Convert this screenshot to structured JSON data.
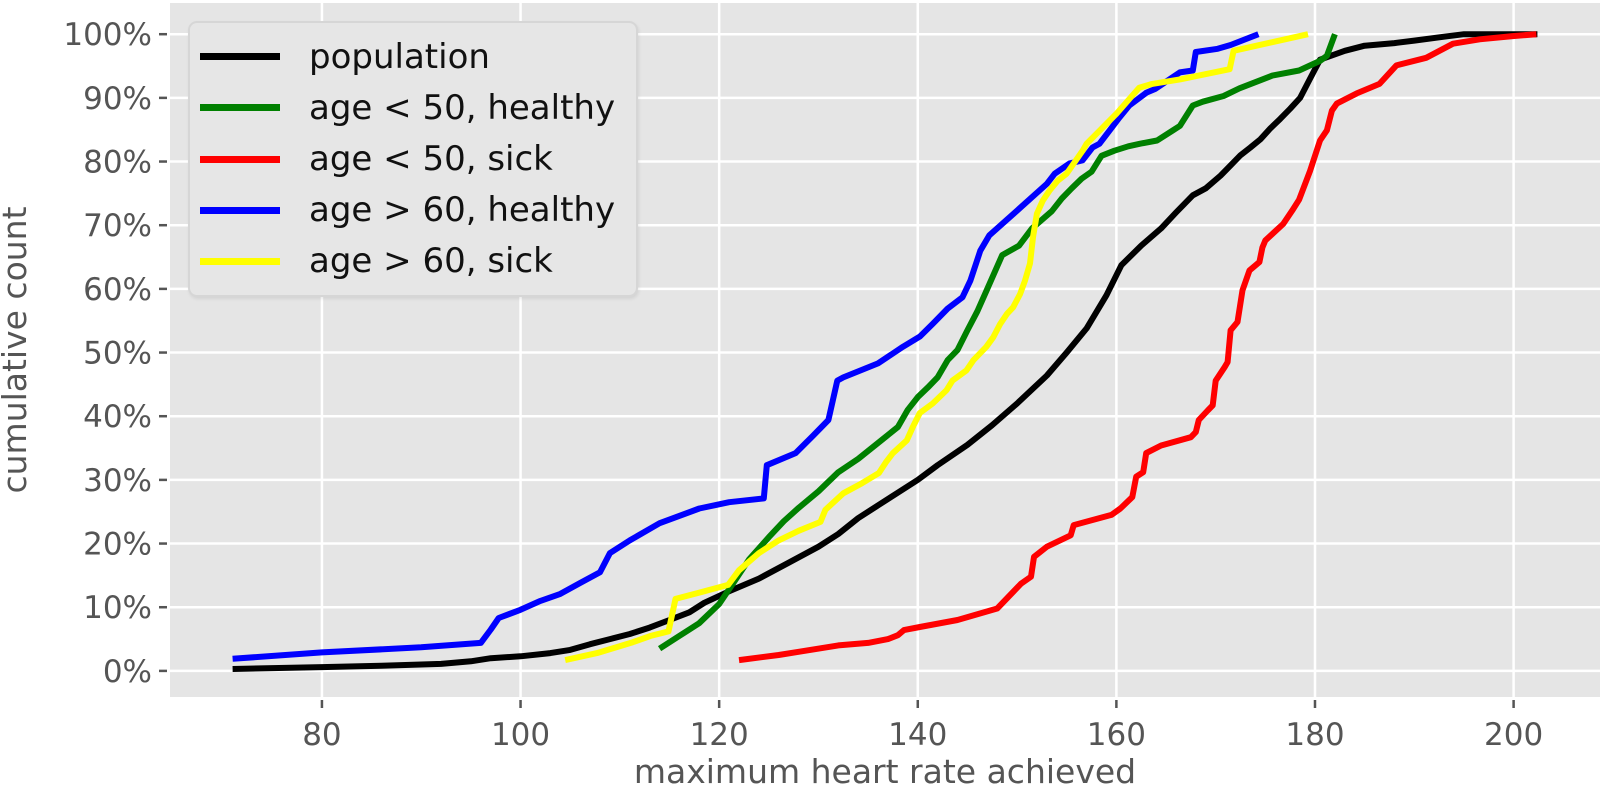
{
  "figure": {
    "background": "#ffffff",
    "plot_background": "#e5e5e5",
    "grid_color": "#ffffff",
    "tick_color": "#555555",
    "label_color": "#555555"
  },
  "chart_data": {
    "type": "line",
    "subtype": "cumulative-distribution",
    "title": "",
    "xlabel": "maximum heart rate achieved",
    "ylabel": "cumulative count",
    "grid": true,
    "legend_position": "upper left",
    "xlim": [
      64.7,
      208.7
    ],
    "ylim": [
      -4.1,
      104.9
    ],
    "x_ticks": [
      80,
      100,
      120,
      140,
      160,
      180,
      200
    ],
    "x_tick_labels": [
      "80",
      "100",
      "120",
      "140",
      "160",
      "180",
      "200"
    ],
    "y_ticks": [
      0,
      10,
      20,
      30,
      40,
      50,
      60,
      70,
      80,
      90,
      100
    ],
    "y_tick_labels": [
      "0%",
      "10%",
      "20%",
      "30%",
      "40%",
      "50%",
      "60%",
      "70%",
      "80%",
      "90%",
      "100%"
    ],
    "series": [
      {
        "label": "population",
        "color": "#000000",
        "points": [
          [
            71,
            0.3
          ],
          [
            80,
            0.6
          ],
          [
            86,
            0.8
          ],
          [
            92,
            1.1
          ],
          [
            95,
            1.5
          ],
          [
            97,
            2.0
          ],
          [
            100,
            2.3
          ],
          [
            103,
            2.8
          ],
          [
            105,
            3.3
          ],
          [
            107,
            4.2
          ],
          [
            109,
            5.0
          ],
          [
            111,
            5.8
          ],
          [
            113,
            6.8
          ],
          [
            115,
            8.0
          ],
          [
            117,
            9.2
          ],
          [
            118.5,
            10.7
          ],
          [
            121,
            12.5
          ],
          [
            124,
            14.5
          ],
          [
            127,
            17.0
          ],
          [
            130,
            19.5
          ],
          [
            132,
            21.5
          ],
          [
            134,
            24.0
          ],
          [
            136,
            26.0
          ],
          [
            138,
            28.0
          ],
          [
            140,
            30.0
          ],
          [
            142,
            32.3
          ],
          [
            145,
            35.5
          ],
          [
            147.5,
            38.6
          ],
          [
            150,
            42.0
          ],
          [
            153,
            46.4
          ],
          [
            155,
            50.0
          ],
          [
            157,
            53.8
          ],
          [
            159,
            59.0
          ],
          [
            160.5,
            63.7
          ],
          [
            162.5,
            66.8
          ],
          [
            164.5,
            69.5
          ],
          [
            166,
            72.0
          ],
          [
            167.7,
            74.7
          ],
          [
            169,
            75.8
          ],
          [
            170.5,
            77.8
          ],
          [
            171.5,
            79.4
          ],
          [
            172.5,
            81.0
          ],
          [
            173.5,
            82.2
          ],
          [
            174.5,
            83.5
          ],
          [
            175.5,
            85.2
          ],
          [
            176.5,
            86.7
          ],
          [
            177.5,
            88.3
          ],
          [
            178.5,
            90.0
          ],
          [
            179.5,
            93.0
          ],
          [
            180.5,
            96.0
          ],
          [
            183,
            97.4
          ],
          [
            185,
            98.2
          ],
          [
            188,
            98.6
          ],
          [
            190,
            99.0
          ],
          [
            193,
            99.6
          ],
          [
            195,
            100
          ],
          [
            202.4,
            100
          ]
        ]
      },
      {
        "label": "age < 50, healthy",
        "color": "#008000",
        "points": [
          [
            114,
            3.5
          ],
          [
            116,
            5.5
          ],
          [
            118,
            7.5
          ],
          [
            120,
            10.5
          ],
          [
            121.5,
            14.0
          ],
          [
            123,
            17.5
          ],
          [
            125,
            21.0
          ],
          [
            126.5,
            23.5
          ],
          [
            128,
            25.6
          ],
          [
            130,
            28.2
          ],
          [
            132,
            31.2
          ],
          [
            134,
            33.3
          ],
          [
            136,
            35.8
          ],
          [
            138,
            38.3
          ],
          [
            139,
            41.0
          ],
          [
            140,
            43.0
          ],
          [
            141,
            44.5
          ],
          [
            142,
            46.1
          ],
          [
            143,
            48.8
          ],
          [
            144,
            50.4
          ],
          [
            145,
            53.5
          ],
          [
            146,
            56.5
          ],
          [
            147,
            60.0
          ],
          [
            148.5,
            65.3
          ],
          [
            150.2,
            66.8
          ],
          [
            151.5,
            69.5
          ],
          [
            153.5,
            72.2
          ],
          [
            154.5,
            74.2
          ],
          [
            155.5,
            75.8
          ],
          [
            156.5,
            77.3
          ],
          [
            157.5,
            78.4
          ],
          [
            158.5,
            80.9
          ],
          [
            159.8,
            81.7
          ],
          [
            161.2,
            82.4
          ],
          [
            162.4,
            82.8
          ],
          [
            164.1,
            83.3
          ],
          [
            165.7,
            84.9
          ],
          [
            166.4,
            85.6
          ],
          [
            167.7,
            88.8
          ],
          [
            168.7,
            89.4
          ],
          [
            170.8,
            90.3
          ],
          [
            172.4,
            91.5
          ],
          [
            175.7,
            93.5
          ],
          [
            178.4,
            94.3
          ],
          [
            180.5,
            95.8
          ],
          [
            181.2,
            96.6
          ],
          [
            182,
            100
          ]
        ]
      },
      {
        "label": "age < 50, sick",
        "color": "#ff0000",
        "points": [
          [
            122,
            1.7
          ],
          [
            126,
            2.5
          ],
          [
            128,
            3.0
          ],
          [
            132,
            4.0
          ],
          [
            135,
            4.4
          ],
          [
            137,
            5.0
          ],
          [
            138,
            5.6
          ],
          [
            138.6,
            6.4
          ],
          [
            140.2,
            6.9
          ],
          [
            144,
            8.0
          ],
          [
            148,
            9.8
          ],
          [
            150.4,
            13.7
          ],
          [
            151.4,
            14.8
          ],
          [
            151.7,
            17.9
          ],
          [
            153,
            19.5
          ],
          [
            155.4,
            21.3
          ],
          [
            155.7,
            22.9
          ],
          [
            159.5,
            24.5
          ],
          [
            160.4,
            25.5
          ],
          [
            161.6,
            27.3
          ],
          [
            162,
            30.5
          ],
          [
            162.7,
            31.2
          ],
          [
            163,
            34.2
          ],
          [
            164.5,
            35.4
          ],
          [
            167.5,
            36.7
          ],
          [
            168,
            37.5
          ],
          [
            168.3,
            39.4
          ],
          [
            169.2,
            40.9
          ],
          [
            169.7,
            41.7
          ],
          [
            170,
            45.6
          ],
          [
            170.9,
            47.7
          ],
          [
            171.2,
            48.5
          ],
          [
            171.5,
            53.5
          ],
          [
            172.2,
            54.8
          ],
          [
            172.7,
            59.8
          ],
          [
            173.4,
            62.9
          ],
          [
            174.4,
            64.2
          ],
          [
            174.7,
            66.5
          ],
          [
            175,
            67.6
          ],
          [
            176.8,
            70.2
          ],
          [
            177.7,
            72.3
          ],
          [
            178.4,
            74.0
          ],
          [
            179.5,
            78.5
          ],
          [
            180.5,
            83.3
          ],
          [
            181.2,
            84.9
          ],
          [
            181.7,
            88.0
          ],
          [
            182.2,
            89.1
          ],
          [
            184.2,
            90.7
          ],
          [
            186.5,
            92.2
          ],
          [
            188.2,
            95.1
          ],
          [
            191.2,
            96.3
          ],
          [
            193.9,
            98.5
          ],
          [
            196.6,
            99.2
          ],
          [
            199.9,
            99.7
          ],
          [
            202.3,
            100
          ]
        ]
      },
      {
        "label": "age > 60, healthy",
        "color": "#0000ff",
        "points": [
          [
            71,
            1.9
          ],
          [
            80,
            2.9
          ],
          [
            90,
            3.7
          ],
          [
            96,
            4.4
          ],
          [
            97,
            6.5
          ],
          [
            97.8,
            8.3
          ],
          [
            100,
            9.6
          ],
          [
            102,
            11.0
          ],
          [
            104,
            12.1
          ],
          [
            106,
            13.8
          ],
          [
            108,
            15.5
          ],
          [
            109,
            18.5
          ],
          [
            111,
            20.5
          ],
          [
            114,
            23.2
          ],
          [
            118,
            25.5
          ],
          [
            121,
            26.5
          ],
          [
            124.5,
            27.1
          ],
          [
            124.8,
            32.3
          ],
          [
            127.7,
            34.2
          ],
          [
            129.5,
            37.0
          ],
          [
            131,
            39.4
          ],
          [
            131.9,
            45.6
          ],
          [
            132.5,
            46.1
          ],
          [
            136,
            48.3
          ],
          [
            138.5,
            50.9
          ],
          [
            140.2,
            52.5
          ],
          [
            141.5,
            54.5
          ],
          [
            143,
            56.9
          ],
          [
            144.5,
            58.7
          ],
          [
            145.3,
            61.3
          ],
          [
            146.3,
            66.0
          ],
          [
            147.2,
            68.4
          ],
          [
            150,
            72.3
          ],
          [
            153,
            76.5
          ],
          [
            153.8,
            78.1
          ],
          [
            155.3,
            79.7
          ],
          [
            156.6,
            80.2
          ],
          [
            157.6,
            82.2
          ],
          [
            158.3,
            82.8
          ],
          [
            160.3,
            86.9
          ],
          [
            161.3,
            88.8
          ],
          [
            163,
            90.8
          ],
          [
            163.9,
            91.4
          ],
          [
            166.4,
            94.0
          ],
          [
            167.7,
            94.3
          ],
          [
            168,
            97.2
          ],
          [
            170.2,
            97.7
          ],
          [
            171.5,
            98.3
          ],
          [
            174.3,
            100
          ]
        ]
      },
      {
        "label": "age > 60, sick",
        "color": "#ffff00",
        "points": [
          [
            104.5,
            1.7
          ],
          [
            107.7,
            2.8
          ],
          [
            111.3,
            4.5
          ],
          [
            113.1,
            5.5
          ],
          [
            114.9,
            6.2
          ],
          [
            115.6,
            11.3
          ],
          [
            118,
            12.3
          ],
          [
            120.9,
            13.5
          ],
          [
            122,
            15.8
          ],
          [
            124,
            18.5
          ],
          [
            126,
            20.5
          ],
          [
            128,
            22.0
          ],
          [
            130.2,
            23.4
          ],
          [
            130.7,
            25.3
          ],
          [
            132.5,
            27.9
          ],
          [
            134.4,
            29.5
          ],
          [
            136.1,
            31.1
          ],
          [
            136.8,
            32.8
          ],
          [
            137.5,
            34.2
          ],
          [
            138.9,
            36.2
          ],
          [
            139.5,
            38.3
          ],
          [
            140.2,
            40.5
          ],
          [
            141.5,
            42.0
          ],
          [
            142.9,
            44.1
          ],
          [
            143.5,
            45.6
          ],
          [
            144.9,
            47.2
          ],
          [
            145.6,
            48.8
          ],
          [
            146.9,
            50.9
          ],
          [
            147.6,
            52.4
          ],
          [
            148.3,
            54.5
          ],
          [
            149,
            56.1
          ],
          [
            149.6,
            57.1
          ],
          [
            150.3,
            59.2
          ],
          [
            150.8,
            61.3
          ],
          [
            151.3,
            64.0
          ],
          [
            151.6,
            68.1
          ],
          [
            152,
            71.8
          ],
          [
            152.6,
            73.9
          ],
          [
            153.3,
            75.5
          ],
          [
            154.1,
            77.0
          ],
          [
            155,
            78.1
          ],
          [
            156.6,
            81.7
          ],
          [
            157,
            82.8
          ],
          [
            158.6,
            85.3
          ],
          [
            160,
            87.5
          ],
          [
            162.3,
            91.6
          ],
          [
            163.6,
            92.2
          ],
          [
            166.4,
            92.9
          ],
          [
            171.4,
            94.5
          ],
          [
            171.8,
            97.4
          ],
          [
            179.3,
            100
          ]
        ]
      }
    ]
  }
}
